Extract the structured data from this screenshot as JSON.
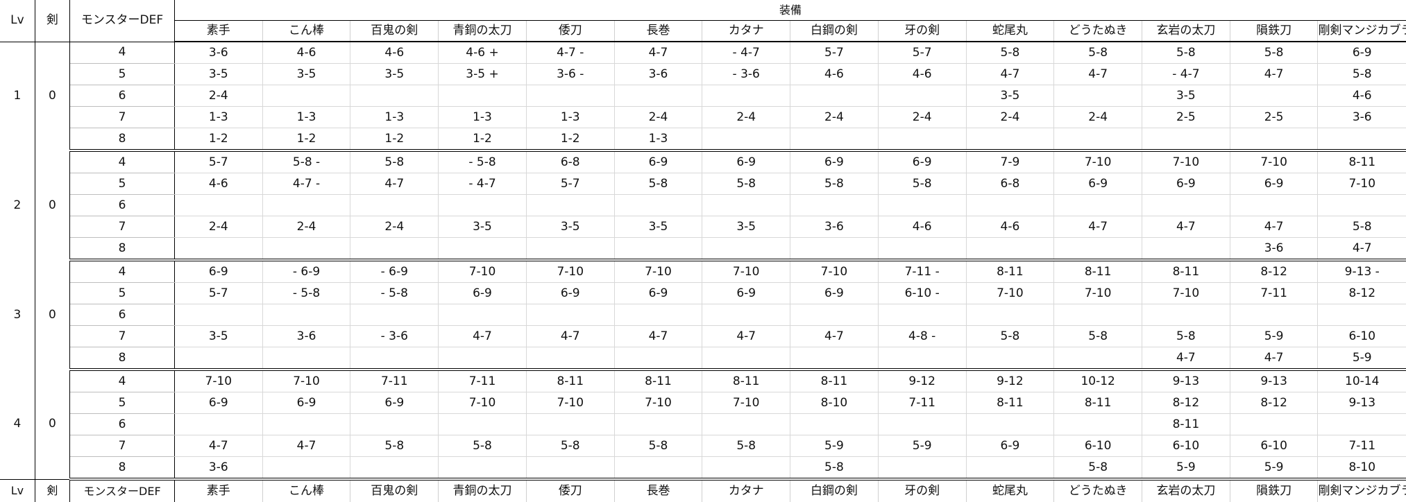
{
  "headers": {
    "lv": "Lv",
    "ken": "剣",
    "def": "モンスターDEF",
    "soubi": "装備",
    "equipment": [
      "素手",
      "こん棒",
      "百鬼の剣",
      "青銅の太刀",
      "倭刀",
      "長巻",
      "カタナ",
      "白鋼の剣",
      "牙の剣",
      "蛇尾丸",
      "どうたぬき",
      "玄岩の太刀",
      "隕鉄刀",
      "剛剣マンジカブラ"
    ]
  },
  "groups": [
    {
      "lv": "1",
      "ken": "0",
      "rows": [
        {
          "def": "4",
          "cells": [
            "3-6",
            "4-6",
            "4-6",
            "4-6 +",
            "4-7 -",
            "4-7",
            "- 4-7",
            "5-7",
            "5-7",
            "5-8",
            "5-8",
            "5-8",
            "5-8",
            "6-9"
          ]
        },
        {
          "def": "5",
          "cells": [
            "3-5",
            "3-5",
            "3-5",
            "3-5 +",
            "3-6 -",
            "3-6",
            "- 3-6",
            "4-6",
            "4-6",
            "4-7",
            "4-7",
            "- 4-7",
            "4-7",
            "5-8"
          ]
        },
        {
          "def": "6",
          "cells": [
            "2-4",
            "",
            "",
            "",
            "",
            "",
            "",
            "",
            "",
            "3-5",
            "",
            "3-5",
            "",
            "4-6"
          ]
        },
        {
          "def": "7",
          "cells": [
            "1-3",
            "1-3",
            "1-3",
            "1-3",
            "1-3",
            "2-4",
            "2-4",
            "2-4",
            "2-4",
            "2-4",
            "2-4",
            "2-5",
            "2-5",
            "3-6"
          ]
        },
        {
          "def": "8",
          "cells": [
            "1-2",
            "1-2",
            "1-2",
            "1-2",
            "1-2",
            "1-3",
            "",
            "",
            "",
            "",
            "",
            "",
            "",
            ""
          ]
        }
      ]
    },
    {
      "lv": "2",
      "ken": "0",
      "rows": [
        {
          "def": "4",
          "cells": [
            "5-7",
            "5-8 -",
            "5-8",
            "- 5-8",
            "6-8",
            "6-9",
            "6-9",
            "6-9",
            "6-9",
            "7-9",
            "7-10",
            "7-10",
            "7-10",
            "8-11"
          ]
        },
        {
          "def": "5",
          "cells": [
            "4-6",
            "4-7 -",
            "4-7",
            "- 4-7",
            "5-7",
            "5-8",
            "5-8",
            "5-8",
            "5-8",
            "6-8",
            "6-9",
            "6-9",
            "6-9",
            "7-10"
          ]
        },
        {
          "def": "6",
          "cells": [
            "",
            "",
            "",
            "",
            "",
            "",
            "",
            "",
            "",
            "",
            "",
            "",
            "",
            ""
          ]
        },
        {
          "def": "7",
          "cells": [
            "2-4",
            "2-4",
            "2-4",
            "3-5",
            "3-5",
            "3-5",
            "3-5",
            "3-6",
            "4-6",
            "4-6",
            "4-7",
            "4-7",
            "4-7",
            "5-8"
          ]
        },
        {
          "def": "8",
          "cells": [
            "",
            "",
            "",
            "",
            "",
            "",
            "",
            "",
            "",
            "",
            "",
            "",
            "3-6",
            "4-7"
          ]
        }
      ]
    },
    {
      "lv": "3",
      "ken": "0",
      "rows": [
        {
          "def": "4",
          "cells": [
            "6-9",
            "- 6-9",
            "- 6-9",
            "7-10",
            "7-10",
            "7-10",
            "7-10",
            "7-10",
            "7-11 -",
            "8-11",
            "8-11",
            "8-11",
            "8-12",
            "9-13 -"
          ]
        },
        {
          "def": "5",
          "cells": [
            "5-7",
            "- 5-8",
            "- 5-8",
            "6-9",
            "6-9",
            "6-9",
            "6-9",
            "6-9",
            "6-10 -",
            "7-10",
            "7-10",
            "7-10",
            "7-11",
            "8-12"
          ]
        },
        {
          "def": "6",
          "cells": [
            "",
            "",
            "",
            "",
            "",
            "",
            "",
            "",
            "",
            "",
            "",
            "",
            "",
            ""
          ]
        },
        {
          "def": "7",
          "cells": [
            "3-5",
            "3-6",
            "- 3-6",
            "4-7",
            "4-7",
            "4-7",
            "4-7",
            "4-7",
            "4-8 -",
            "5-8",
            "5-8",
            "5-8",
            "5-9",
            "6-10"
          ]
        },
        {
          "def": "8",
          "cells": [
            "",
            "",
            "",
            "",
            "",
            "",
            "",
            "",
            "",
            "",
            "",
            "4-7",
            "4-7",
            "5-9"
          ]
        }
      ]
    },
    {
      "lv": "4",
      "ken": "0",
      "rows": [
        {
          "def": "4",
          "cells": [
            "7-10",
            "7-10",
            "7-11",
            "7-11",
            "8-11",
            "8-11",
            "8-11",
            "8-11",
            "9-12",
            "9-12",
            "10-12",
            "9-13",
            "9-13",
            "10-14"
          ]
        },
        {
          "def": "5",
          "cells": [
            "6-9",
            "6-9",
            "6-9",
            "7-10",
            "7-10",
            "7-10",
            "7-10",
            "8-10",
            "7-11",
            "8-11",
            "8-11",
            "8-12",
            "8-12",
            "9-13"
          ]
        },
        {
          "def": "6",
          "cells": [
            "",
            "",
            "",
            "",
            "",
            "",
            "",
            "",
            "",
            "",
            "",
            "8-11",
            "",
            ""
          ]
        },
        {
          "def": "7",
          "cells": [
            "4-7",
            "4-7",
            "5-8",
            "5-8",
            "5-8",
            "5-8",
            "5-8",
            "5-9",
            "5-9",
            "6-9",
            "6-10",
            "6-10",
            "6-10",
            "7-11"
          ]
        },
        {
          "def": "8",
          "cells": [
            "3-6",
            "",
            "",
            "",
            "",
            "",
            "",
            "5-8",
            "",
            "",
            "5-8",
            "5-9",
            "5-9",
            "8-10"
          ]
        }
      ]
    }
  ]
}
